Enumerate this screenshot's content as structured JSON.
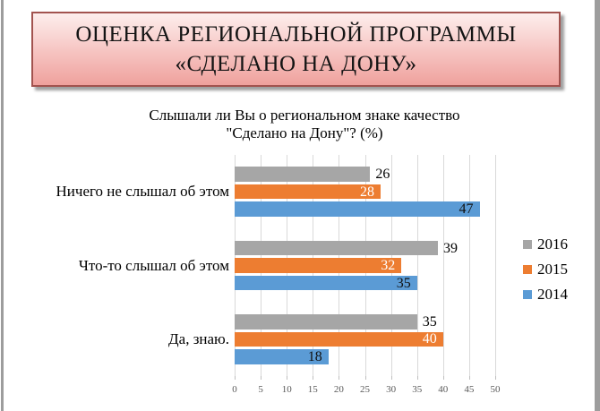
{
  "banner": {
    "line1": "ОЦЕНКА РЕГИОНАЛЬНОЙ ПРОГРАММЫ",
    "line2": "«СДЕЛАНО НА ДОНУ»"
  },
  "chart_header": {
    "line1": "Слышали ли Вы о региональном знаке качество",
    "line2": "\"Сделано на Дону\"? (%)"
  },
  "chart_data": {
    "type": "bar",
    "orientation": "horizontal",
    "title": "Слышали ли Вы о региональном знаке качество \"Сделано на Дону\"? (%)",
    "categories": [
      "Ничего не слышал об этом",
      "Что-то слышал об этом",
      "Да, знаю."
    ],
    "series": [
      {
        "name": "2016",
        "color": "#a6a6a6",
        "values": [
          26,
          39,
          35
        ],
        "value_label_position": "outside",
        "value_label_color": "#000000"
      },
      {
        "name": "2015",
        "color": "#ed7d31",
        "values": [
          28,
          32,
          40
        ],
        "value_label_position": "inside",
        "value_label_color": "#ffffff"
      },
      {
        "name": "2014",
        "color": "#5b9bd5",
        "values": [
          47,
          35,
          18
        ],
        "value_label_position": "inside",
        "value_label_color": "#111111"
      }
    ],
    "x_ticks": [
      0,
      5,
      10,
      15,
      20,
      25,
      30,
      35,
      40,
      45,
      50
    ],
    "xlim": [
      0,
      50
    ],
    "grid": true,
    "legend_position": "right",
    "legend_entries": [
      "2016",
      "2015",
      "2014"
    ]
  }
}
